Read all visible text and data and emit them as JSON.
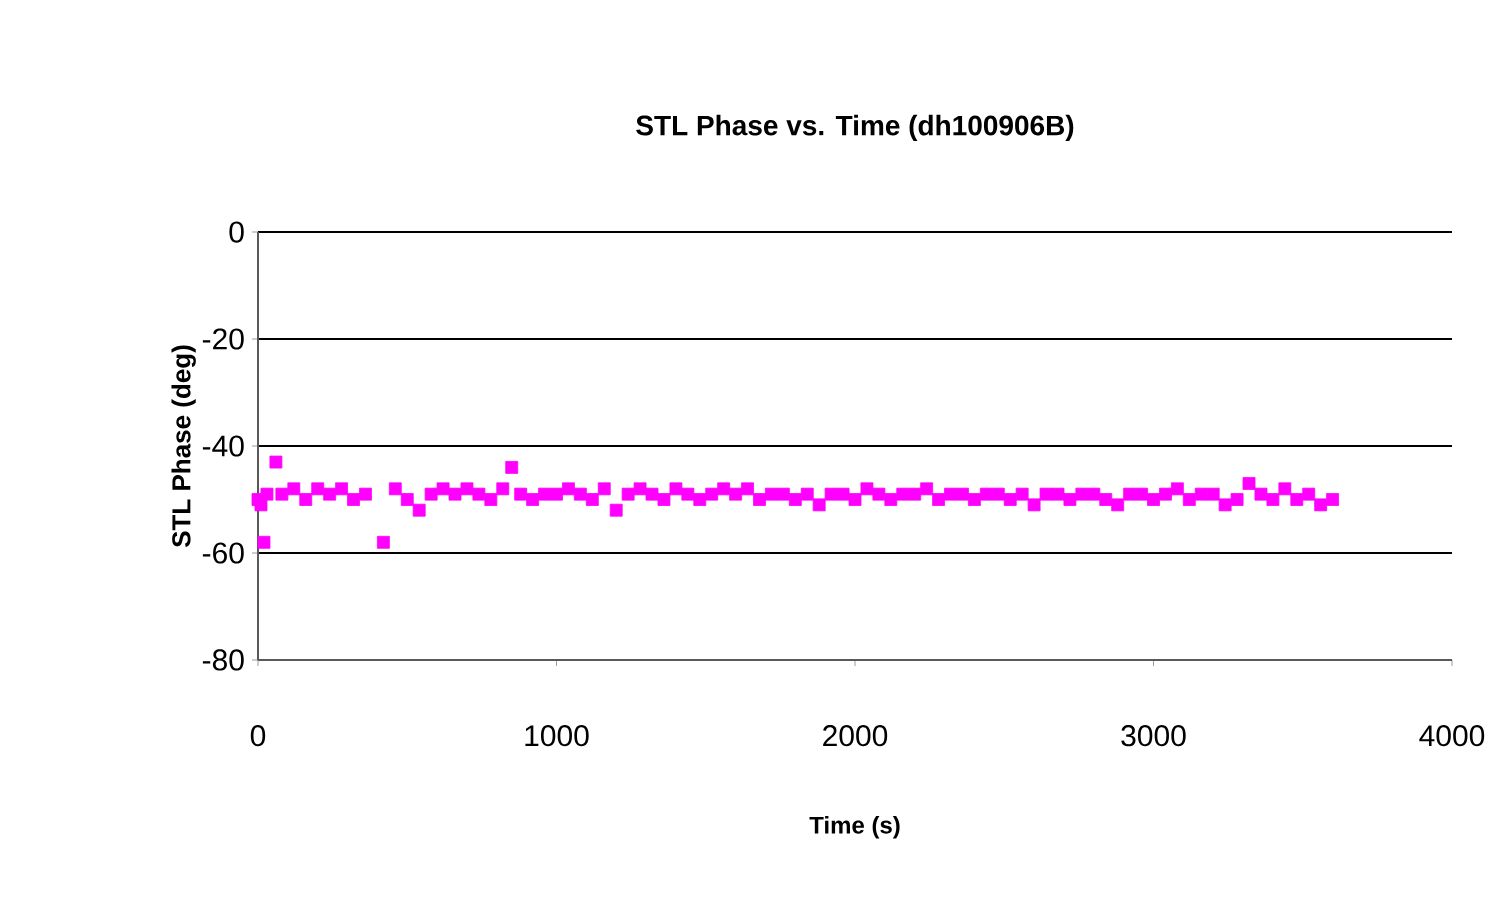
{
  "chart_data": {
    "type": "scatter",
    "title": "STL Phase vs. Time (dh100906B)",
    "xlabel": "Time (s)",
    "ylabel": "STL Phase (deg)",
    "xlim": [
      0,
      4000
    ],
    "xticks": [
      0,
      1000,
      2000,
      3000,
      4000
    ],
    "ylim": [
      -80,
      0
    ],
    "yticks": [
      -80,
      -60,
      -40,
      -20,
      0
    ],
    "grid": "y",
    "marker": "square",
    "series": [
      {
        "color": "#ff00ff",
        "x": [
          0,
          10,
          20,
          30,
          60,
          80,
          120,
          160,
          200,
          240,
          280,
          320,
          360,
          420,
          460,
          500,
          540,
          580,
          620,
          660,
          700,
          740,
          780,
          820,
          850,
          880,
          920,
          960,
          1000,
          1040,
          1080,
          1120,
          1160,
          1200,
          1240,
          1280,
          1320,
          1360,
          1400,
          1440,
          1480,
          1520,
          1560,
          1600,
          1640,
          1680,
          1720,
          1760,
          1800,
          1840,
          1880,
          1920,
          1960,
          2000,
          2040,
          2080,
          2120,
          2160,
          2200,
          2240,
          2280,
          2320,
          2360,
          2400,
          2440,
          2480,
          2520,
          2560,
          2600,
          2640,
          2680,
          2720,
          2760,
          2800,
          2840,
          2880,
          2920,
          2960,
          3000,
          3040,
          3080,
          3120,
          3160,
          3200,
          3240,
          3280,
          3320,
          3360,
          3400,
          3440,
          3480,
          3520,
          3560,
          3600
        ],
        "values": [
          -50,
          -51,
          -58,
          -49,
          -43,
          -49,
          -48,
          -50,
          -48,
          -49,
          -48,
          -50,
          -49,
          -58,
          -48,
          -50,
          -52,
          -49,
          -48,
          -49,
          -48,
          -49,
          -50,
          -48,
          -44,
          -49,
          -50,
          -49,
          -49,
          -48,
          -49,
          -50,
          -48,
          -52,
          -49,
          -48,
          -49,
          -50,
          -48,
          -49,
          -50,
          -49,
          -48,
          -49,
          -48,
          -50,
          -49,
          -49,
          -50,
          -49,
          -51,
          -49,
          -49,
          -50,
          -48,
          -49,
          -50,
          -49,
          -49,
          -48,
          -50,
          -49,
          -49,
          -50,
          -49,
          -49,
          -50,
          -49,
          -51,
          -49,
          -49,
          -50,
          -49,
          -49,
          -50,
          -51,
          -49,
          -49,
          -50,
          -49,
          -48,
          -50,
          -49,
          -49,
          -51,
          -50,
          -47,
          -49,
          -50,
          -48,
          -50,
          -49,
          -51,
          -50
        ]
      }
    ]
  }
}
